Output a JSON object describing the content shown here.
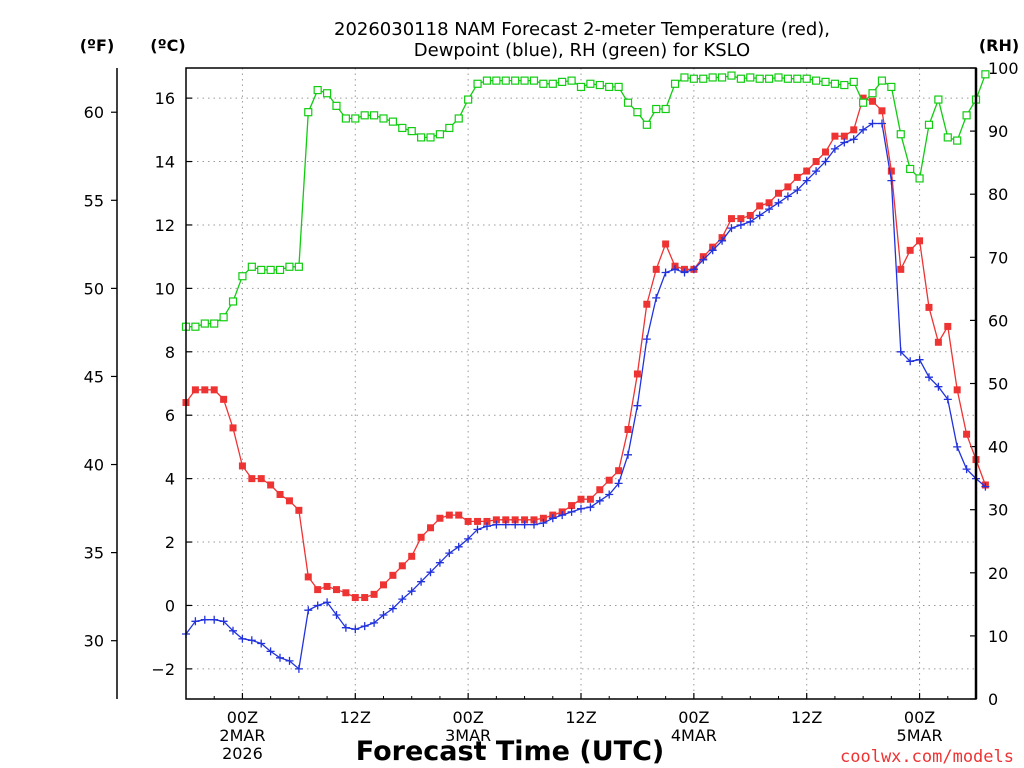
{
  "chart_data": {
    "type": "line",
    "title_line1": "2026030118 NAM Forecast 2-meter Temperature (red),",
    "title_line2": "Dewpoint (blue), RH (green) for KSLO",
    "left_outer_unit": "(ºF)",
    "left_inner_unit": "(ºC)",
    "right_unit": "(RH)",
    "xlabel": "Forecast Time (UTC)",
    "credit": "coolwx.com/models",
    "forecast_hour_range": [
      -6,
      78
    ],
    "celsius_range": [
      -2.95,
      16.95
    ],
    "rh_range": [
      0,
      100
    ],
    "celsius_ticks": [
      -2,
      0,
      2,
      4,
      6,
      8,
      10,
      12,
      14,
      16
    ],
    "fahrenheit_ticks": [
      30,
      35,
      40,
      45,
      50,
      55,
      60
    ],
    "rh_ticks": [
      0,
      10,
      20,
      30,
      40,
      50,
      60,
      70,
      80,
      90,
      100
    ],
    "x_ticks": [
      {
        "hour": 0,
        "lines": [
          "00Z",
          "2MAR",
          "2026"
        ]
      },
      {
        "hour": 12,
        "lines": [
          "12Z"
        ]
      },
      {
        "hour": 24,
        "lines": [
          "00Z",
          "3MAR"
        ]
      },
      {
        "hour": 36,
        "lines": [
          "12Z"
        ]
      },
      {
        "hour": 48,
        "lines": [
          "00Z",
          "4MAR"
        ]
      },
      {
        "hour": 60,
        "lines": [
          "12Z"
        ]
      },
      {
        "hour": 72,
        "lines": [
          "00Z",
          "5MAR"
        ]
      }
    ],
    "series": [
      {
        "name": "Temperature",
        "color": "#ee3333",
        "marker": "square-filled",
        "points": [
          [
            -6,
            6.4
          ],
          [
            -5,
            6.8
          ],
          [
            -4,
            6.8
          ],
          [
            -3,
            6.8
          ],
          [
            -2,
            6.5
          ],
          [
            -1,
            5.6
          ],
          [
            0,
            4.4
          ],
          [
            1,
            4.0
          ],
          [
            2,
            4.0
          ],
          [
            3,
            3.8
          ],
          [
            4,
            3.5
          ],
          [
            5,
            3.3
          ],
          [
            6,
            3.0
          ],
          [
            7,
            0.9
          ],
          [
            8,
            0.5
          ],
          [
            9,
            0.6
          ],
          [
            10,
            0.5
          ],
          [
            11,
            0.4
          ],
          [
            12,
            0.25
          ],
          [
            13,
            0.25
          ],
          [
            14,
            0.35
          ],
          [
            15,
            0.65
          ],
          [
            16,
            0.95
          ],
          [
            17,
            1.25
          ],
          [
            18,
            1.55
          ],
          [
            19,
            2.15
          ],
          [
            20,
            2.45
          ],
          [
            21,
            2.75
          ],
          [
            22,
            2.85
          ],
          [
            23,
            2.85
          ],
          [
            24,
            2.65
          ],
          [
            25,
            2.65
          ],
          [
            26,
            2.65
          ],
          [
            27,
            2.7
          ],
          [
            28,
            2.7
          ],
          [
            29,
            2.7
          ],
          [
            30,
            2.7
          ],
          [
            31,
            2.7
          ],
          [
            32,
            2.75
          ],
          [
            33,
            2.85
          ],
          [
            34,
            2.95
          ],
          [
            35,
            3.15
          ],
          [
            36,
            3.35
          ],
          [
            37,
            3.35
          ],
          [
            38,
            3.65
          ],
          [
            39,
            3.95
          ],
          [
            40,
            4.25
          ],
          [
            41,
            5.55
          ],
          [
            42,
            7.3
          ],
          [
            43,
            9.5
          ],
          [
            44,
            10.6
          ],
          [
            45,
            11.4
          ],
          [
            46,
            10.7
          ],
          [
            47,
            10.6
          ],
          [
            48,
            10.6
          ],
          [
            49,
            11.0
          ],
          [
            50,
            11.3
          ],
          [
            51,
            11.6
          ],
          [
            52,
            12.2
          ],
          [
            53,
            12.2
          ],
          [
            54,
            12.3
          ],
          [
            55,
            12.6
          ],
          [
            56,
            12.7
          ],
          [
            57,
            13.0
          ],
          [
            58,
            13.2
          ],
          [
            59,
            13.5
          ],
          [
            60,
            13.7
          ],
          [
            61,
            14.0
          ],
          [
            62,
            14.3
          ],
          [
            63,
            14.8
          ],
          [
            64,
            14.8
          ],
          [
            65,
            15.0
          ],
          [
            66,
            16.0
          ],
          [
            67,
            15.9
          ],
          [
            68,
            15.6
          ],
          [
            69,
            13.7
          ],
          [
            70,
            10.6
          ],
          [
            71,
            11.2
          ],
          [
            72,
            11.5
          ],
          [
            73,
            9.4
          ],
          [
            74,
            8.3
          ],
          [
            75,
            8.8
          ],
          [
            76,
            6.8
          ],
          [
            77,
            5.4
          ],
          [
            78,
            4.6
          ],
          [
            79,
            3.8
          ]
        ]
      },
      {
        "name": "Dewpoint",
        "color": "#2233dd",
        "marker": "plus",
        "points": [
          [
            -6,
            -0.9
          ],
          [
            -5,
            -0.5
          ],
          [
            -4,
            -0.45
          ],
          [
            -3,
            -0.45
          ],
          [
            -2,
            -0.5
          ],
          [
            -1,
            -0.8
          ],
          [
            0,
            -1.05
          ],
          [
            1,
            -1.1
          ],
          [
            2,
            -1.2
          ],
          [
            3,
            -1.45
          ],
          [
            4,
            -1.65
          ],
          [
            5,
            -1.75
          ],
          [
            6,
            -2.0
          ],
          [
            7,
            -0.15
          ],
          [
            8,
            0.0
          ],
          [
            9,
            0.1
          ],
          [
            10,
            -0.3
          ],
          [
            11,
            -0.7
          ],
          [
            12,
            -0.75
          ],
          [
            13,
            -0.65
          ],
          [
            14,
            -0.55
          ],
          [
            15,
            -0.3
          ],
          [
            16,
            -0.1
          ],
          [
            17,
            0.2
          ],
          [
            18,
            0.45
          ],
          [
            19,
            0.75
          ],
          [
            20,
            1.05
          ],
          [
            21,
            1.35
          ],
          [
            22,
            1.65
          ],
          [
            23,
            1.85
          ],
          [
            24,
            2.1
          ],
          [
            25,
            2.4
          ],
          [
            26,
            2.5
          ],
          [
            27,
            2.55
          ],
          [
            28,
            2.55
          ],
          [
            29,
            2.55
          ],
          [
            30,
            2.55
          ],
          [
            31,
            2.55
          ],
          [
            32,
            2.6
          ],
          [
            33,
            2.75
          ],
          [
            34,
            2.85
          ],
          [
            35,
            2.95
          ],
          [
            36,
            3.05
          ],
          [
            37,
            3.1
          ],
          [
            38,
            3.3
          ],
          [
            39,
            3.5
          ],
          [
            40,
            3.85
          ],
          [
            41,
            4.75
          ],
          [
            42,
            6.3
          ],
          [
            43,
            8.4
          ],
          [
            44,
            9.7
          ],
          [
            45,
            10.5
          ],
          [
            46,
            10.6
          ],
          [
            47,
            10.5
          ],
          [
            48,
            10.6
          ],
          [
            49,
            10.9
          ],
          [
            50,
            11.2
          ],
          [
            51,
            11.5
          ],
          [
            52,
            11.9
          ],
          [
            53,
            12.0
          ],
          [
            54,
            12.1
          ],
          [
            55,
            12.3
          ],
          [
            56,
            12.5
          ],
          [
            57,
            12.7
          ],
          [
            58,
            12.9
          ],
          [
            59,
            13.1
          ],
          [
            60,
            13.4
          ],
          [
            61,
            13.7
          ],
          [
            62,
            14.0
          ],
          [
            63,
            14.4
          ],
          [
            64,
            14.6
          ],
          [
            65,
            14.7
          ],
          [
            66,
            15.0
          ],
          [
            67,
            15.2
          ],
          [
            68,
            15.2
          ],
          [
            69,
            13.4
          ],
          [
            70,
            8.0
          ],
          [
            71,
            7.7
          ],
          [
            72,
            7.75
          ],
          [
            73,
            7.2
          ],
          [
            74,
            6.9
          ],
          [
            75,
            6.5
          ],
          [
            76,
            5.0
          ],
          [
            77,
            4.3
          ],
          [
            78,
            4.0
          ],
          [
            79,
            3.75
          ]
        ]
      },
      {
        "name": "RH",
        "color": "#11cc11",
        "marker": "square-open",
        "axis": "right",
        "points": [
          [
            -6,
            59
          ],
          [
            -5,
            59
          ],
          [
            -4,
            59.5
          ],
          [
            -3,
            59.5
          ],
          [
            -2,
            60.5
          ],
          [
            -1,
            63
          ],
          [
            0,
            67
          ],
          [
            1,
            68.5
          ],
          [
            2,
            68
          ],
          [
            3,
            68
          ],
          [
            4,
            68
          ],
          [
            5,
            68.5
          ],
          [
            6,
            68.5
          ],
          [
            7,
            93
          ],
          [
            8,
            96.5
          ],
          [
            9,
            96
          ],
          [
            10,
            94
          ],
          [
            11,
            92
          ],
          [
            12,
            92
          ],
          [
            13,
            92.5
          ],
          [
            14,
            92.5
          ],
          [
            15,
            92
          ],
          [
            16,
            91.5
          ],
          [
            17,
            90.5
          ],
          [
            18,
            90
          ],
          [
            19,
            89
          ],
          [
            20,
            89
          ],
          [
            21,
            89.5
          ],
          [
            22,
            90.5
          ],
          [
            23,
            92
          ],
          [
            24,
            95
          ],
          [
            25,
            97.5
          ],
          [
            26,
            98
          ],
          [
            27,
            98
          ],
          [
            28,
            98
          ],
          [
            29,
            98
          ],
          [
            30,
            98
          ],
          [
            31,
            98
          ],
          [
            32,
            97.5
          ],
          [
            33,
            97.5
          ],
          [
            34,
            97.8
          ],
          [
            35,
            98
          ],
          [
            36,
            97
          ],
          [
            37,
            97.5
          ],
          [
            38,
            97.3
          ],
          [
            39,
            97
          ],
          [
            40,
            97
          ],
          [
            41,
            94.5
          ],
          [
            42,
            93
          ],
          [
            43,
            91
          ],
          [
            44,
            93.5
          ],
          [
            45,
            93.5
          ],
          [
            46,
            97.5
          ],
          [
            47,
            98.5
          ],
          [
            48,
            98.3
          ],
          [
            49,
            98.3
          ],
          [
            50,
            98.5
          ],
          [
            51,
            98.5
          ],
          [
            52,
            98.8
          ],
          [
            53,
            98.3
          ],
          [
            54,
            98.5
          ],
          [
            55,
            98.3
          ],
          [
            56,
            98.3
          ],
          [
            57,
            98.5
          ],
          [
            58,
            98.3
          ],
          [
            59,
            98.3
          ],
          [
            60,
            98.3
          ],
          [
            61,
            98
          ],
          [
            62,
            97.8
          ],
          [
            63,
            97.5
          ],
          [
            64,
            97.3
          ],
          [
            65,
            97.8
          ],
          [
            66,
            94.5
          ],
          [
            67,
            96
          ],
          [
            68,
            98
          ],
          [
            69,
            97
          ],
          [
            70,
            89.5
          ],
          [
            71,
            84
          ],
          [
            72,
            82.5
          ],
          [
            73,
            91
          ],
          [
            74,
            95
          ],
          [
            75,
            89
          ],
          [
            76,
            88.5
          ],
          [
            77,
            92.5
          ],
          [
            78,
            95
          ],
          [
            79,
            99
          ]
        ]
      }
    ]
  }
}
